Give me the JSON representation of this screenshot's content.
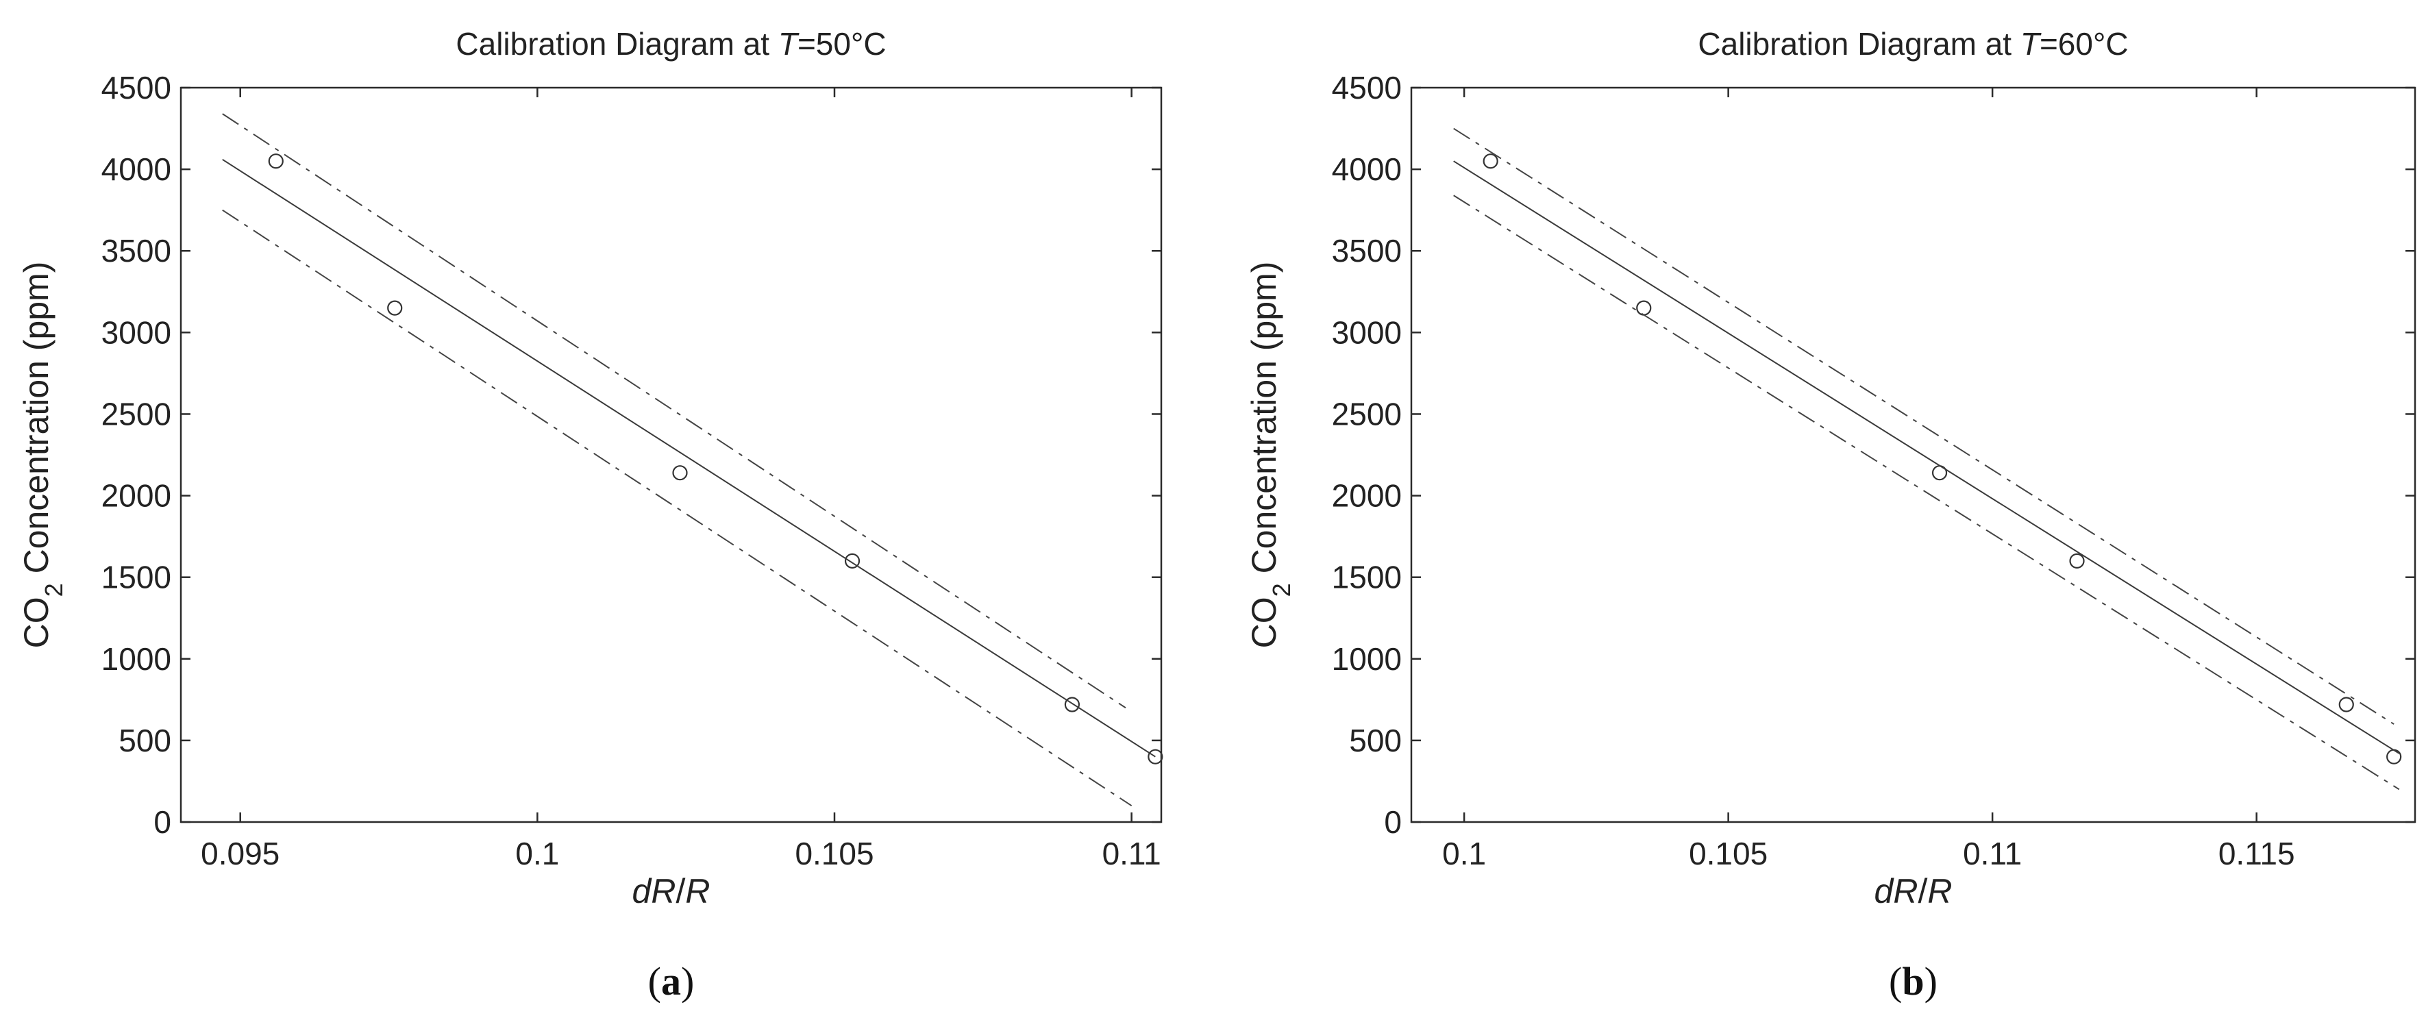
{
  "chart_data": [
    {
      "type": "scatter",
      "title_prefix": "Calibration Diagram at ",
      "title_var": "T",
      "title_suffix": "=50°C",
      "panel_label": "a",
      "xlabel_parts": [
        "dR",
        "/",
        "R"
      ],
      "ylabel_parts": [
        "CO",
        "2",
        " Concentration  (ppm)"
      ],
      "xlim": [
        0.094,
        0.1105
      ],
      "ylim": [
        0,
        4500
      ],
      "x_ticks": [
        0.095,
        0.1,
        0.105,
        0.11
      ],
      "x_tick_labels": [
        "0.095",
        "0.1",
        "0.105",
        "0.11"
      ],
      "y_ticks": [
        0,
        500,
        1000,
        1500,
        2000,
        2500,
        3000,
        3500,
        4000,
        4500
      ],
      "y_tick_labels": [
        "0",
        "500",
        "1000",
        "1500",
        "2000",
        "2500",
        "3000",
        "3500",
        "4000",
        "4500"
      ],
      "series": [
        {
          "style": "circle-markers",
          "x": [
            0.0956,
            0.0976,
            0.1024,
            0.1053,
            0.109,
            0.1104
          ],
          "y": [
            4050,
            3150,
            2140,
            1600,
            720,
            400
          ]
        },
        {
          "style": "solid-line",
          "x": [
            0.0947,
            0.1104
          ],
          "y": [
            4060,
            400
          ]
        },
        {
          "style": "dash-dot-line",
          "x": [
            0.0947,
            0.1099
          ],
          "y": [
            4340,
            700
          ]
        },
        {
          "style": "dash-dot-line",
          "x": [
            0.0947,
            0.11
          ],
          "y": [
            3750,
            100
          ]
        }
      ]
    },
    {
      "type": "scatter",
      "title_prefix": "Calibration Diagram at ",
      "title_var": "T",
      "title_suffix": "=60°C",
      "panel_label": "b",
      "xlabel_parts": [
        "dR",
        "/",
        "R"
      ],
      "ylabel_parts": [
        "CO",
        "2",
        " Concentration  (ppm)"
      ],
      "xlim": [
        0.099,
        0.118
      ],
      "ylim": [
        0,
        4500
      ],
      "x_ticks": [
        0.1,
        0.105,
        0.11,
        0.115
      ],
      "x_tick_labels": [
        "0.1",
        "0.105",
        "0.11",
        "0.115"
      ],
      "y_ticks": [
        0,
        500,
        1000,
        1500,
        2000,
        2500,
        3000,
        3500,
        4000,
        4500
      ],
      "y_tick_labels": [
        "0",
        "500",
        "1000",
        "1500",
        "2000",
        "2500",
        "3000",
        "3500",
        "4000",
        "4500"
      ],
      "series": [
        {
          "style": "circle-markers",
          "x": [
            0.1005,
            0.1034,
            0.109,
            0.1116,
            0.1167,
            0.1176
          ],
          "y": [
            4050,
            3150,
            2140,
            1600,
            720,
            400
          ]
        },
        {
          "style": "solid-line",
          "x": [
            0.0998,
            0.1177
          ],
          "y": [
            4050,
            420
          ]
        },
        {
          "style": "dash-dot-line",
          "x": [
            0.0998,
            0.1176
          ],
          "y": [
            4250,
            600
          ]
        },
        {
          "style": "dash-dot-line",
          "x": [
            0.0998,
            0.1177
          ],
          "y": [
            3840,
            200
          ]
        }
      ]
    }
  ]
}
